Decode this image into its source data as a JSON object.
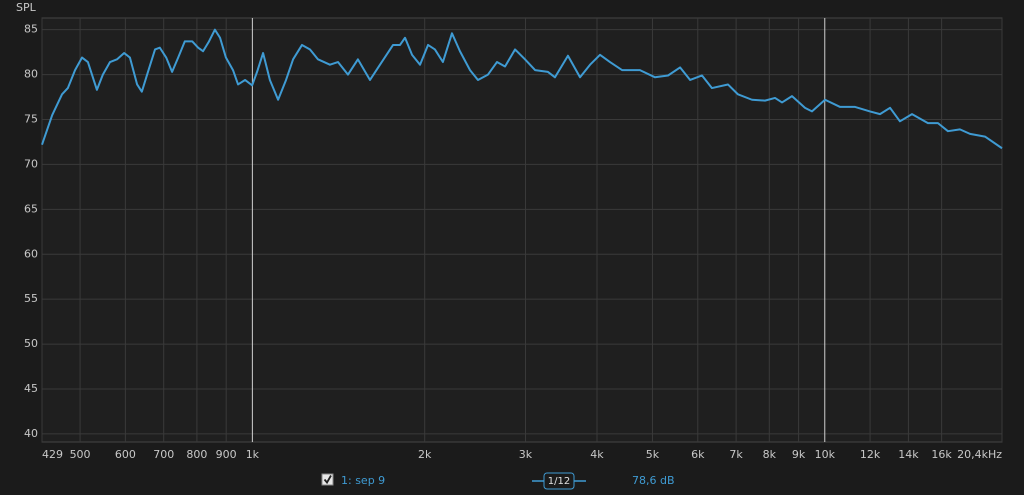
{
  "chart_data": {
    "type": "line",
    "y_label": "SPL",
    "xlim": [
      429,
      20400
    ],
    "ylim": [
      39.1,
      86.3
    ],
    "log_x": true,
    "grid": true,
    "xticks": [
      429,
      500,
      600,
      700,
      800,
      900,
      {
        "value": 1000,
        "label": "1k"
      },
      {
        "value": 2000,
        "label": "2k"
      },
      {
        "value": 3000,
        "label": "3k"
      },
      {
        "value": 4000,
        "label": "4k"
      },
      {
        "value": 5000,
        "label": "5k"
      },
      {
        "value": 6000,
        "label": "6k"
      },
      {
        "value": 7000,
        "label": "7k"
      },
      {
        "value": 8000,
        "label": "8k"
      },
      {
        "value": 9000,
        "label": "9k"
      },
      {
        "value": 10000,
        "label": "10k"
      },
      {
        "value": 12000,
        "label": "12k"
      },
      {
        "value": 14000,
        "label": "14k"
      },
      {
        "value": 16000,
        "label": "16k"
      },
      {
        "value": 20400,
        "label": "20,4kHz"
      }
    ],
    "yticks": [
      40,
      45,
      50,
      55,
      60,
      65,
      70,
      75,
      80,
      85
    ],
    "x": [
      429,
      447,
      465,
      476,
      490,
      504,
      516,
      535,
      548,
      564,
      580,
      597,
      611,
      629,
      641,
      657,
      676,
      689,
      707,
      724,
      742,
      762,
      785,
      804,
      820,
      840,
      860,
      878,
      899,
      925,
      944,
      971,
      999,
      1019,
      1044,
      1073,
      1109,
      1145,
      1178,
      1221,
      1261,
      1302,
      1366,
      1411,
      1469,
      1529,
      1605,
      1671,
      1761,
      1811,
      1848,
      1901,
      1963,
      2027,
      2084,
      2152,
      2232,
      2305,
      2400,
      2478,
      2580,
      2675,
      2763,
      2877,
      2994,
      3118,
      3284,
      3378,
      3559,
      3736,
      3890,
      4049,
      4215,
      4424,
      4754,
      5052,
      5324,
      5587,
      5818,
      6103,
      6352,
      6774,
      7053,
      7461,
      7863,
      8186,
      8420,
      8765,
      9237,
      9498,
      10010,
      10635,
      11296,
      11995,
      12488,
      13003,
      13531,
      14204,
      15144,
      15766,
      16414,
      17224,
      17937,
      19052,
      20400
    ],
    "series": [
      {
        "name": "1: sep 9",
        "color": "#3f9bd3",
        "values": [
          72.2,
          75.5,
          77.8,
          78.5,
          80.5,
          81.9,
          81.4,
          78.3,
          80.0,
          81.4,
          81.7,
          82.4,
          81.9,
          78.9,
          78.1,
          80.3,
          82.8,
          83.0,
          81.9,
          80.3,
          81.9,
          83.7,
          83.7,
          83.0,
          82.6,
          83.7,
          85.0,
          84.1,
          81.9,
          80.5,
          78.9,
          79.4,
          78.8,
          80.3,
          82.4,
          79.4,
          77.2,
          79.4,
          81.7,
          83.3,
          82.8,
          81.7,
          81.1,
          81.4,
          80.0,
          81.7,
          79.4,
          81.1,
          83.3,
          83.3,
          84.1,
          82.2,
          81.1,
          83.3,
          82.8,
          81.4,
          84.6,
          82.6,
          80.5,
          79.4,
          80.0,
          81.4,
          80.9,
          82.8,
          81.7,
          80.5,
          80.3,
          79.7,
          82.1,
          79.7,
          81.1,
          82.2,
          81.4,
          80.5,
          80.5,
          79.7,
          79.9,
          80.8,
          79.4,
          79.9,
          78.5,
          78.9,
          77.8,
          77.2,
          77.1,
          77.4,
          76.9,
          77.6,
          76.3,
          75.9,
          77.2,
          76.4,
          76.4,
          75.9,
          75.6,
          76.3,
          74.8,
          75.6,
          74.6,
          74.6,
          73.7,
          73.9,
          73.4,
          73.1,
          71.8
        ]
      }
    ],
    "smoothing": "1/12",
    "cursor_value": "78,6 dB"
  }
}
